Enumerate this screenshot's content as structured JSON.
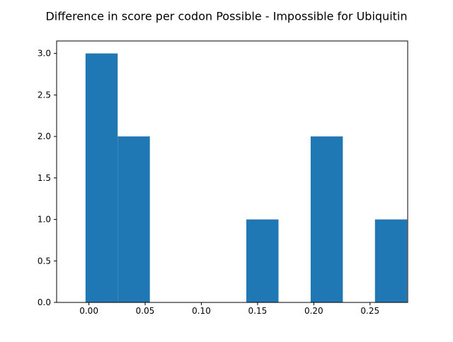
{
  "chart_data": {
    "type": "bar",
    "title": "Difference in score per codon Possible - Impossible for Ubiquitin",
    "xlabel": "",
    "ylabel": "",
    "xlim": [
      -0.0287,
      0.2835
    ],
    "ylim": [
      0,
      3.15
    ],
    "bar_color": "#1f77b4",
    "bins": [
      {
        "x0": -0.003,
        "x1": 0.0256,
        "count": 3
      },
      {
        "x0": 0.0256,
        "x1": 0.0542,
        "count": 2
      },
      {
        "x0": 0.0542,
        "x1": 0.0828,
        "count": 0
      },
      {
        "x0": 0.0828,
        "x1": 0.1114,
        "count": 0
      },
      {
        "x0": 0.1114,
        "x1": 0.14,
        "count": 0
      },
      {
        "x0": 0.14,
        "x1": 0.1686,
        "count": 1
      },
      {
        "x0": 0.1686,
        "x1": 0.1972,
        "count": 0
      },
      {
        "x0": 0.1972,
        "x1": 0.2258,
        "count": 2
      },
      {
        "x0": 0.2258,
        "x1": 0.2544,
        "count": 0
      },
      {
        "x0": 0.2544,
        "x1": 0.283,
        "count": 1
      }
    ],
    "x_ticks": [
      {
        "value": 0.0,
        "label": "0.00"
      },
      {
        "value": 0.05,
        "label": "0.05"
      },
      {
        "value": 0.1,
        "label": "0.10"
      },
      {
        "value": 0.15,
        "label": "0.15"
      },
      {
        "value": 0.2,
        "label": "0.20"
      },
      {
        "value": 0.25,
        "label": "0.25"
      }
    ],
    "y_ticks": [
      {
        "value": 0.0,
        "label": "0.0"
      },
      {
        "value": 0.5,
        "label": "0.5"
      },
      {
        "value": 1.0,
        "label": "1.0"
      },
      {
        "value": 1.5,
        "label": "1.5"
      },
      {
        "value": 2.0,
        "label": "2.0"
      },
      {
        "value": 2.5,
        "label": "2.5"
      },
      {
        "value": 3.0,
        "label": "3.0"
      }
    ],
    "grid": false,
    "legend": "none"
  }
}
